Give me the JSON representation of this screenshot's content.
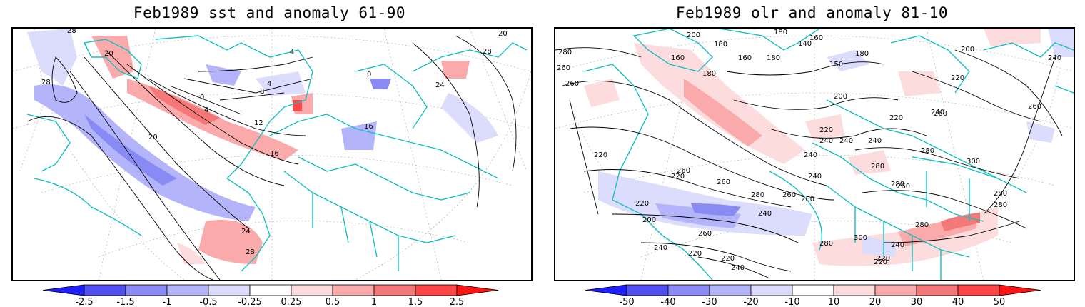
{
  "panels": [
    {
      "title": "Feb1989 sst and anomaly 61-90",
      "colorbar": {
        "labels": [
          "-2.5",
          "-1.5",
          "-1",
          "-0.5",
          "-0.25",
          "0.25",
          "0.5",
          "1",
          "1.5",
          "2.5"
        ],
        "colors": [
          "#1e1eff",
          "#5050f0",
          "#8a8af5",
          "#b4b4fa",
          "#dcdcfc",
          "#ffffff",
          "#fcdcdc",
          "#faaaaa",
          "#f57878",
          "#ff4646",
          "#ff1414"
        ]
      },
      "contour_labels": [
        "28",
        "28",
        "20",
        "20",
        "0",
        "4",
        "4",
        "8",
        "12",
        "16",
        "16",
        "24",
        "24",
        "28",
        "28",
        "20",
        "0",
        "4"
      ]
    },
    {
      "title": "Feb1989 olr and anomaly 81-10",
      "colorbar": {
        "labels": [
          "-50",
          "-40",
          "-30",
          "-20",
          "-10",
          "10",
          "20",
          "30",
          "40",
          "50"
        ],
        "colors": [
          "#1e1eff",
          "#5050f0",
          "#8a8af5",
          "#b4b4fa",
          "#dcdcfc",
          "#ffffff",
          "#fcdcdc",
          "#faaaaa",
          "#f57878",
          "#ff4646",
          "#ff1414"
        ]
      },
      "contour_labels": [
        "280",
        "200",
        "180",
        "160",
        "180",
        "160",
        "140",
        "180",
        "160",
        "180",
        "150",
        "180",
        "200",
        "220",
        "240",
        "260",
        "260",
        "200",
        "220",
        "240",
        "240",
        "240",
        "220",
        "260",
        "280",
        "300",
        "260",
        "240",
        "240",
        "260",
        "280",
        "220",
        "260",
        "260",
        "240",
        "260",
        "280",
        "280",
        "280",
        "220",
        "220",
        "200",
        "260",
        "240",
        "220",
        "300",
        "280",
        "240",
        "220",
        "240",
        "220",
        "240",
        "280",
        "220",
        "280",
        "260"
      ]
    }
  ]
}
